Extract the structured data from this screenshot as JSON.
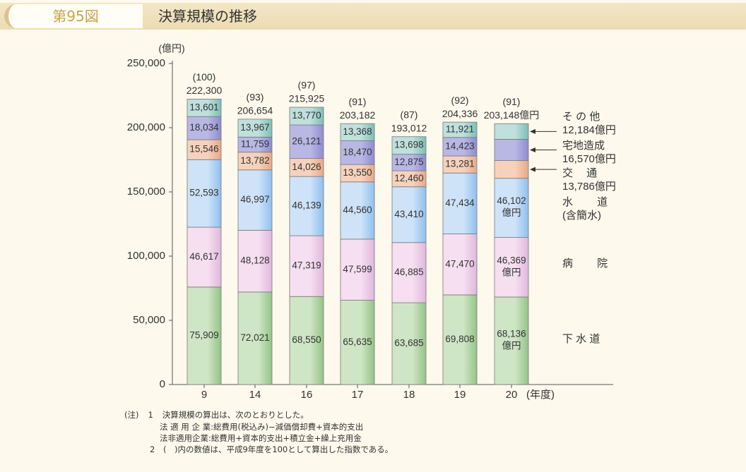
{
  "header": {
    "figure_number": "第95図",
    "title": "決算規模の推移"
  },
  "chart_data": {
    "type": "bar",
    "stacked": true,
    "y_unit": "(億円)",
    "x_unit": "(年度)",
    "ylim": [
      0,
      250000
    ],
    "yticks": [
      "0",
      "50,000",
      "100,000",
      "150,000",
      "200,000",
      "250,000"
    ],
    "categories": [
      "9",
      "14",
      "16",
      "17",
      "18",
      "19",
      "20"
    ],
    "series": [
      {
        "name": "下水道",
        "values": [
          75909,
          72021,
          68550,
          65635,
          63685,
          69808,
          68136
        ],
        "labels": [
          "75,909",
          "72,021",
          "68,550",
          "65,635",
          "63,685",
          "69,808",
          "68,136"
        ]
      },
      {
        "name": "病院",
        "values": [
          46617,
          48128,
          47319,
          47599,
          46885,
          47470,
          46369
        ],
        "labels": [
          "46,617",
          "48,128",
          "47,319",
          "47,599",
          "46,885",
          "47,470",
          "46,369"
        ]
      },
      {
        "name": "水道(含簡水)",
        "values": [
          52593,
          46997,
          46139,
          44560,
          43410,
          47434,
          46102
        ],
        "labels": [
          "52,593",
          "46,997",
          "46,139",
          "44,560",
          "43,410",
          "47,434",
          "46,102"
        ]
      },
      {
        "name": "交通",
        "values": [
          15546,
          13782,
          14026,
          13550,
          12460,
          13281,
          13786
        ],
        "labels": [
          "15,546",
          "13,782",
          "14,026",
          "13,550",
          "12,460",
          "13,281",
          ""
        ]
      },
      {
        "name": "宅地造成",
        "values": [
          18034,
          11759,
          26121,
          18470,
          12875,
          14423,
          16570
        ],
        "labels": [
          "18,034",
          "11,759",
          "26,121",
          "18,470",
          "12,875",
          "14,423",
          ""
        ]
      },
      {
        "name": "その他",
        "values": [
          13601,
          13967,
          13770,
          13368,
          13698,
          11921,
          12184
        ],
        "labels": [
          "13,601",
          "13,967",
          "13,770",
          "13,368",
          "13,698",
          "11,921",
          ""
        ]
      }
    ],
    "totals": [
      "222,300",
      "206,654",
      "215,925",
      "203,182",
      "193,012",
      "204,336",
      "203,148億円"
    ],
    "indices": [
      "(100)",
      "(93)",
      "(97)",
      "(91)",
      "(87)",
      "(92)",
      "(91)"
    ],
    "last_bar_unit": "億円",
    "legend_labels": [
      {
        "series": 5,
        "lines": [
          "そ の 他",
          "12,184億円"
        ],
        "arrow": true
      },
      {
        "series": 4,
        "lines": [
          "宅地造成",
          "16,570億円"
        ],
        "arrow": true
      },
      {
        "series": 3,
        "lines": [
          "交　 通",
          "13,786億円"
        ],
        "arrow": true
      },
      {
        "series": 2,
        "lines": [
          "水　　 道",
          "(含簡水)"
        ],
        "arrow": false
      },
      {
        "series": 1,
        "lines": [
          "病　　 院"
        ],
        "arrow": false
      },
      {
        "series": 0,
        "lines": [
          "下 水 道"
        ],
        "arrow": false
      }
    ],
    "colors": [
      "#cfe6c6",
      "#f6dff0",
      "#cfe3f8",
      "#f6d2bd",
      "#b9b8e4",
      "#bfe0dc"
    ],
    "colors_deep": [
      "#94c387",
      "#dfb8dd",
      "#8fc0ee",
      "#e6a98a",
      "#8f8ccf",
      "#7dbfb6"
    ]
  },
  "notes": {
    "note_prefix": "(注)",
    "n1_num": "1",
    "n1": "決算規模の算出は、次のとおりとした。",
    "n1a": "法 適 用 企 業:総費用(税込み)−減価償却費+資本的支出",
    "n1b": "法非適用企業:総費用+資本的支出+積立金+繰上充用金",
    "n2_num": "2",
    "n2": "(　)内の数値は、平成9年度を100として算出した指数である。"
  }
}
